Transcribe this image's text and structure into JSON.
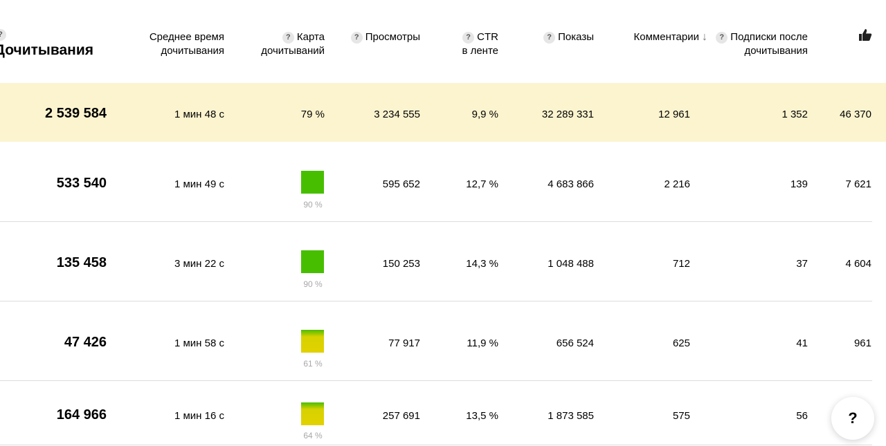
{
  "header": {
    "read_completions": "Дочитывания",
    "avg_time_l1": "Среднее время",
    "avg_time_l2": "дочитывания",
    "read_map_l1": "Карта",
    "read_map_l2": "дочитываний",
    "views": "Просмотры",
    "ctr_l1": "CTR",
    "ctr_l2": "в ленте",
    "impressions": "Показы",
    "comments": "Комментарии",
    "subs_l1": "Подписки после",
    "subs_l2": "дочитывания",
    "help_mark": "?",
    "sort_arrow": "↓",
    "like_icon": "thumbs-up-icon"
  },
  "rows": [
    {
      "reads": "2 539 584",
      "avg_time": "1 мин 48 с",
      "map": "79 %",
      "views": "3 234 555",
      "ctr": "9,9 %",
      "impressions": "32 289 331",
      "comments": "12 961",
      "subs": "1 352",
      "likes": "46 370"
    },
    {
      "reads": "533 540",
      "avg_time": "1 мин 49 с",
      "map": "90 %",
      "map_level": 90,
      "views": "595 652",
      "ctr": "12,7 %",
      "impressions": "4 683 866",
      "comments": "2 216",
      "subs": "139",
      "likes": "7 621"
    },
    {
      "reads": "135 458",
      "avg_time": "3 мин 22 с",
      "map": "90 %",
      "map_level": 90,
      "views": "150 253",
      "ctr": "14,3 %",
      "impressions": "1 048 488",
      "comments": "712",
      "subs": "37",
      "likes": "4 604"
    },
    {
      "reads": "47 426",
      "avg_time": "1 мин 58 с",
      "map": "61 %",
      "map_level": 61,
      "views": "77 917",
      "ctr": "11,9 %",
      "impressions": "656 524",
      "comments": "625",
      "subs": "41",
      "likes": "961"
    },
    {
      "reads": "164 966",
      "avg_time": "1 мин 16 с",
      "map": "64 %",
      "map_level": 64,
      "views": "257 691",
      "ctr": "13,5 %",
      "impressions": "1 873 585",
      "comments": "575",
      "subs": "56",
      "likes": ""
    }
  ],
  "help_button": "?",
  "colors": {
    "highlight_row": "#fbf4cf",
    "map_green": "#47bf00",
    "map_yellow": "#e2d100"
  }
}
